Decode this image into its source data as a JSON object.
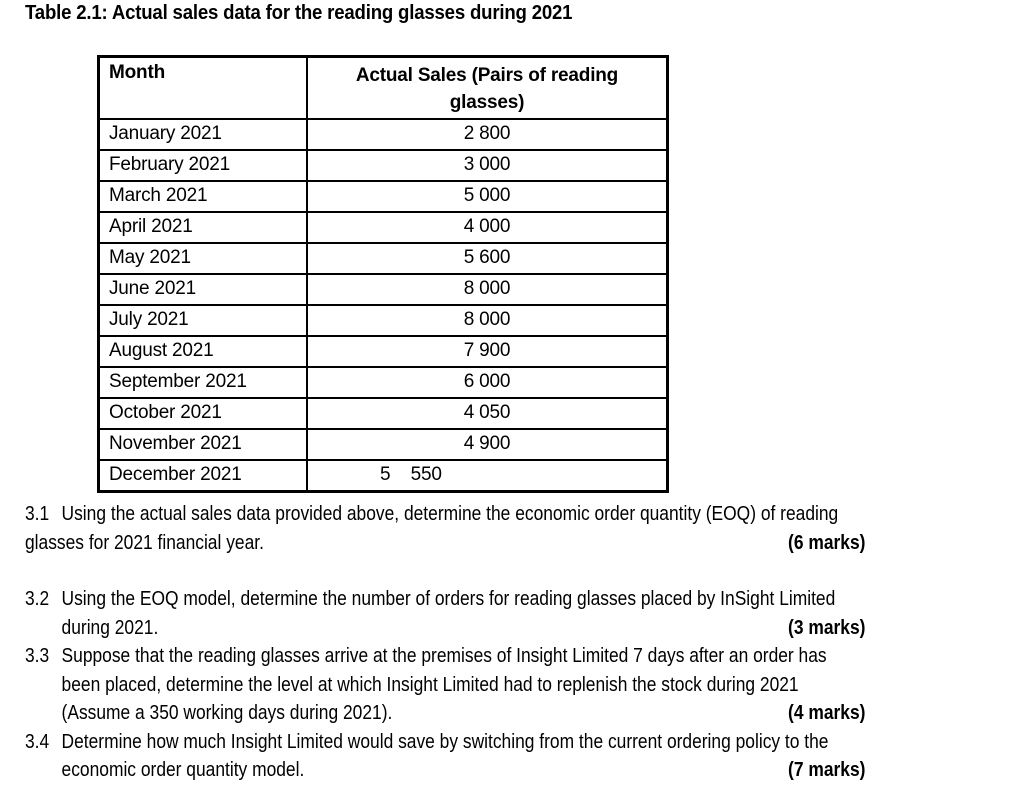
{
  "page": {
    "background_color": "#ffffff",
    "text_color": "#000000",
    "border_color": "#000000"
  },
  "title": "Table 2.1: Actual sales data for the reading glasses during 2021",
  "table": {
    "headers": [
      "Month",
      "Actual Sales (Pairs of reading glasses)"
    ],
    "rows": [
      {
        "month": "January 2021",
        "sales": "2 800"
      },
      {
        "month": "February 2021",
        "sales": "3 000"
      },
      {
        "month": "March 2021",
        "sales": "5 000"
      },
      {
        "month": "April 2021",
        "sales": "4 000"
      },
      {
        "month": "May 2021",
        "sales": "5 600"
      },
      {
        "month": "June 2021",
        "sales": "8 000"
      },
      {
        "month": "July 2021",
        "sales": "8 000"
      },
      {
        "month": "August 2021",
        "sales": "7 900"
      },
      {
        "month": "September 2021",
        "sales": "6 000"
      },
      {
        "month": "October 2021",
        "sales": "4 050"
      },
      {
        "month": "November 2021",
        "sales": "4 900"
      },
      {
        "month": "December 2021",
        "sales": "5    550",
        "offset": true
      }
    ]
  },
  "questions": [
    {
      "number": "3.1",
      "lines": [
        "Using the actual sales data provided above, determine the economic order quantity (EOQ) of reading",
        "glasses for 2021 financial year."
      ],
      "marks": "(6 marks)"
    },
    {
      "number": "3.2",
      "lines": [
        "Using the EOQ model, determine the number of orders for reading glasses placed by InSight Limited",
        "during 2021."
      ],
      "marks": "(3 marks)"
    },
    {
      "number": "3.3",
      "lines": [
        "Suppose that the reading glasses arrive at the premises of Insight Limited 7 days after an order has",
        "been placed, determine the level at which Insight Limited had to replenish the stock during 2021",
        "(Assume a 350 working days during 2021)."
      ],
      "marks": "(4 marks)"
    },
    {
      "number": "3.4",
      "lines": [
        "Determine how much Insight Limited would save by switching from the current ordering policy to the",
        "economic order quantity model."
      ],
      "marks": "(7 marks)"
    }
  ]
}
